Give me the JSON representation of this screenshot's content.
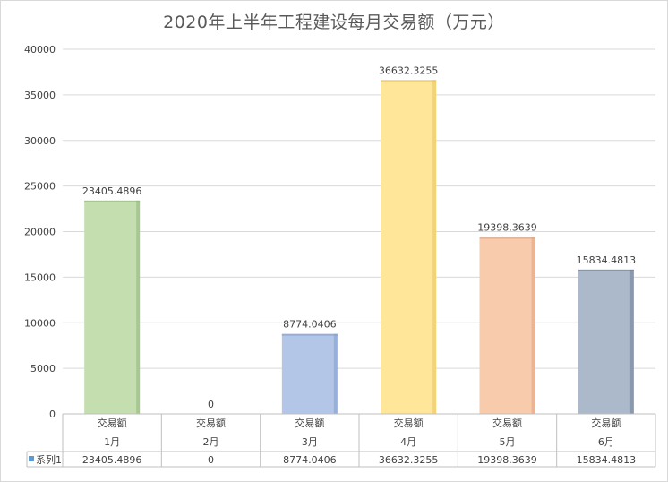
{
  "chart_data": {
    "type": "bar",
    "title": "2020年上半年工程建设每月交易额（万元）",
    "categories": [
      "1月",
      "2月",
      "3月",
      "4月",
      "5月",
      "6月"
    ],
    "category_group": "交易额",
    "series": [
      {
        "name": "系列1",
        "values": [
          23405.4896,
          0,
          8774.0406,
          36632.3255,
          19398.3639,
          15834.4813
        ]
      }
    ],
    "value_labels": [
      "23405.4896",
      "0",
      "8774.0406",
      "36632.3255",
      "19398.3639",
      "15834.4813"
    ],
    "bar_colors": [
      "#c5deb0",
      "#c5deb0",
      "#b4c6e7",
      "#ffe699",
      "#f8cbad",
      "#acb9ca"
    ],
    "bar_edge_colors": [
      "#8fb77a",
      "#8fb77a",
      "#7f9fd0",
      "#e8c55a",
      "#e0a27f",
      "#6f7f96"
    ],
    "ylim": [
      0,
      40000
    ],
    "yticks": [
      0,
      5000,
      10000,
      15000,
      20000,
      25000,
      30000,
      35000,
      40000
    ],
    "grid": true,
    "legend": "data-table",
    "legend_marker_color": "#5b9bd5"
  }
}
